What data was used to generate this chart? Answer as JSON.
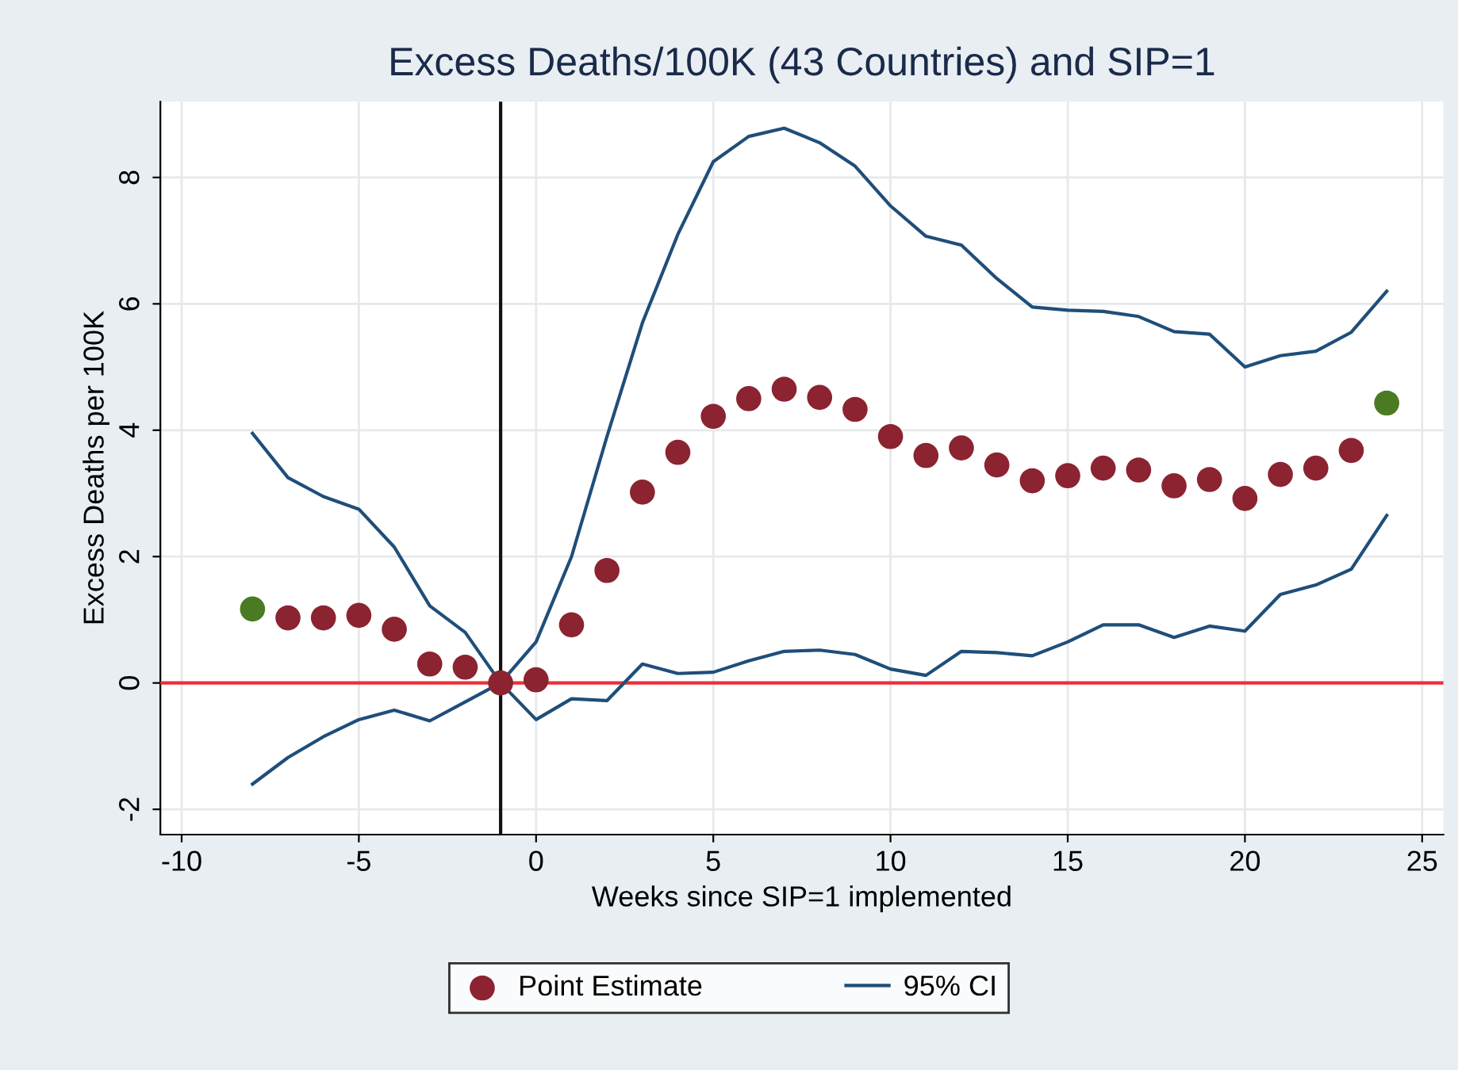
{
  "chart_data": {
    "type": "scatter",
    "title": "Excess Deaths/100K (43 Countries) and SIP=1",
    "xlabel": "Weeks since SIP=1 implemented",
    "ylabel": "Excess Deaths per 100K",
    "x": [
      -8,
      -7,
      -6,
      -5,
      -4,
      -3,
      -2,
      -1,
      0,
      1,
      2,
      3,
      4,
      5,
      6,
      7,
      8,
      9,
      10,
      11,
      12,
      13,
      14,
      15,
      16,
      17,
      18,
      19,
      20,
      21,
      22,
      23,
      24
    ],
    "series": [
      {
        "name": "Point Estimate",
        "marker": "circle",
        "color": "#8b2331",
        "colors": [
          "#4a7a22",
          "#8b2331",
          "#8b2331",
          "#8b2331",
          "#8b2331",
          "#8b2331",
          "#8b2331",
          "#8b2331",
          "#8b2331",
          "#8b2331",
          "#8b2331",
          "#8b2331",
          "#8b2331",
          "#8b2331",
          "#8b2331",
          "#8b2331",
          "#8b2331",
          "#8b2331",
          "#8b2331",
          "#8b2331",
          "#8b2331",
          "#8b2331",
          "#8b2331",
          "#8b2331",
          "#8b2331",
          "#8b2331",
          "#8b2331",
          "#8b2331",
          "#8b2331",
          "#8b2331",
          "#8b2331",
          "#8b2331",
          "#4a7a22"
        ],
        "values": [
          1.17,
          1.03,
          1.03,
          1.07,
          0.85,
          0.3,
          0.25,
          0,
          0.05,
          0.92,
          1.78,
          3.02,
          3.65,
          4.22,
          4.5,
          4.65,
          4.52,
          4.33,
          3.9,
          3.6,
          3.72,
          3.45,
          3.2,
          3.28,
          3.4,
          3.37,
          3.12,
          3.22,
          2.92,
          3.3,
          3.4,
          3.68,
          4.43
        ]
      },
      {
        "name": "95% CI",
        "type": "line",
        "color": "#1f4e79",
        "values": [
          3.95,
          3.25,
          2.95,
          2.75,
          2.15,
          1.22,
          0.8,
          0,
          0.65,
          2.0,
          3.9,
          5.7,
          7.1,
          8.25,
          8.65,
          8.78,
          8.55,
          8.18,
          7.55,
          7.07,
          6.93,
          6.4,
          5.95,
          5.9,
          5.88,
          5.8,
          5.56,
          5.52,
          5.0,
          5.18,
          5.25,
          5.55,
          6.2
        ]
      },
      {
        "type": "line",
        "color": "#1f4e79",
        "values": [
          -1.6,
          -1.18,
          -0.85,
          -0.58,
          -0.43,
          -0.6,
          -0.3,
          0,
          -0.58,
          -0.25,
          -0.28,
          0.3,
          0.15,
          0.17,
          0.35,
          0.5,
          0.52,
          0.45,
          0.22,
          0.12,
          0.5,
          0.48,
          0.43,
          0.65,
          0.92,
          0.92,
          0.72,
          0.9,
          0.82,
          1.4,
          1.55,
          1.8,
          2.65
        ]
      }
    ],
    "xlim": [
      -10.6,
      25.6
    ],
    "xticks": [
      -10,
      -5,
      0,
      5,
      10,
      15,
      20,
      25
    ],
    "ylim": [
      -2.4,
      9.2
    ],
    "yticks": [
      -2,
      0,
      2,
      4,
      6,
      8
    ],
    "ref_lines": [
      {
        "axis": "y",
        "value": 0,
        "color": "#e8303a"
      },
      {
        "axis": "x",
        "value": -1,
        "color": "#111111"
      }
    ],
    "grid": true,
    "legend": "bottom"
  }
}
